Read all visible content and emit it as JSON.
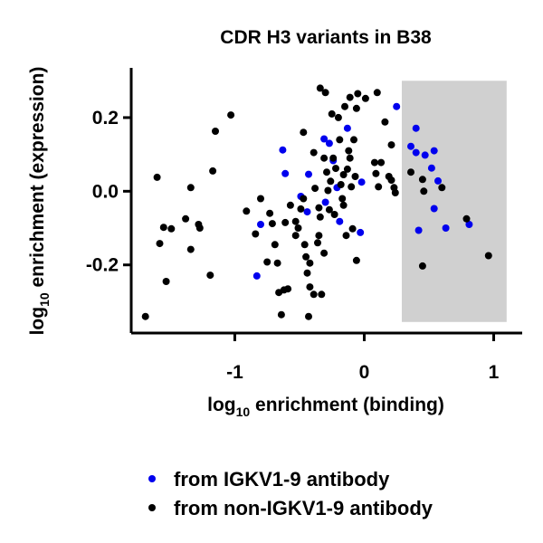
{
  "chart_data": {
    "type": "scatter",
    "title": "CDR H3 variants in B38",
    "xlabel_main": "log",
    "xlabel_sub": "10",
    "xlabel_rest": " enrichment (binding)",
    "ylabel_main": "log",
    "ylabel_sub": "10",
    "ylabel_rest": " enrichment (expression)",
    "xlim": [
      -1.8,
      1.22
    ],
    "ylim": [
      -0.385,
      0.335
    ],
    "xticks": [
      -1,
      0,
      1
    ],
    "xtick_labels": [
      "-1",
      "0",
      "1"
    ],
    "yticks": [
      -0.2,
      0.0,
      0.2
    ],
    "ytick_labels": [
      "-0.2",
      "0.0",
      "0.2"
    ],
    "shaded_region": {
      "x": [
        0.29,
        1.1
      ],
      "y": [
        -0.355,
        0.3
      ],
      "color": "#d0d0d0"
    },
    "grid": false,
    "legend_position": "bottom",
    "series": [
      {
        "name": "from IGKV1-9 antibody",
        "color": "#0000ee",
        "points": [
          [
            -0.63,
            0.112
          ],
          [
            -0.61,
            0.048
          ],
          [
            -0.8,
            -0.09
          ],
          [
            -0.83,
            -0.23
          ],
          [
            -0.49,
            -0.014
          ],
          [
            -0.43,
            0.046
          ],
          [
            -0.44,
            -0.056
          ],
          [
            -0.31,
            0.142
          ],
          [
            -0.27,
            0.13
          ],
          [
            -0.3,
            -0.03
          ],
          [
            -0.24,
            0.083
          ],
          [
            -0.19,
            -0.082
          ],
          [
            -0.13,
            0.171
          ],
          [
            -0.21,
            0.01
          ],
          [
            -0.02,
            0.025
          ],
          [
            -0.03,
            -0.112
          ],
          [
            0.25,
            0.23
          ],
          [
            0.36,
            0.122
          ],
          [
            0.4,
            0.105
          ],
          [
            0.4,
            0.171
          ],
          [
            0.47,
            0.098
          ],
          [
            0.52,
            0.063
          ],
          [
            0.54,
            0.11
          ],
          [
            0.57,
            0.028
          ],
          [
            0.54,
            -0.047
          ],
          [
            0.42,
            -0.106
          ],
          [
            0.63,
            -0.1
          ],
          [
            0.81,
            -0.09
          ]
        ]
      },
      {
        "name": "from non-IGKV1-9 antibody",
        "color": "#000000",
        "points": [
          [
            -1.69,
            -0.34
          ],
          [
            -1.6,
            0.038
          ],
          [
            -1.58,
            -0.142
          ],
          [
            -1.53,
            -0.245
          ],
          [
            -1.55,
            -0.098
          ],
          [
            -1.49,
            -0.102
          ],
          [
            -1.38,
            -0.075
          ],
          [
            -1.34,
            -0.158
          ],
          [
            -1.34,
            0.01
          ],
          [
            -1.28,
            -0.09
          ],
          [
            -1.27,
            -0.1
          ],
          [
            -1.19,
            -0.228
          ],
          [
            -1.17,
            0.055
          ],
          [
            -1.15,
            0.163
          ],
          [
            -1.03,
            0.207
          ],
          [
            -0.91,
            -0.054
          ],
          [
            -0.84,
            -0.116
          ],
          [
            -0.75,
            -0.192
          ],
          [
            -0.8,
            -0.02
          ],
          [
            -0.73,
            -0.06
          ],
          [
            -0.71,
            -0.088
          ],
          [
            -0.67,
            -0.195
          ],
          [
            -0.66,
            -0.275
          ],
          [
            -0.64,
            -0.335
          ],
          [
            -0.62,
            -0.268
          ],
          [
            -0.59,
            -0.265
          ],
          [
            -0.61,
            -0.085
          ],
          [
            -0.57,
            -0.038
          ],
          [
            -0.53,
            -0.12
          ],
          [
            -0.53,
            -0.082
          ],
          [
            -0.49,
            -0.048
          ],
          [
            -0.47,
            -0.02
          ],
          [
            -0.46,
            -0.145
          ],
          [
            -0.44,
            -0.222
          ],
          [
            -0.42,
            -0.26
          ],
          [
            -0.43,
            -0.34
          ],
          [
            -0.42,
            -0.195
          ],
          [
            -0.39,
            -0.28
          ],
          [
            -0.38,
            0.008
          ],
          [
            -0.36,
            -0.14
          ],
          [
            -0.35,
            -0.12
          ],
          [
            -0.34,
            -0.07
          ],
          [
            -0.33,
            -0.28
          ],
          [
            -0.31,
            -0.168
          ],
          [
            -0.31,
            0.09
          ],
          [
            -0.29,
            0.052
          ],
          [
            -0.28,
            0.002
          ],
          [
            -0.27,
            -0.05
          ],
          [
            -0.26,
            0.027
          ],
          [
            -0.25,
            0.21
          ],
          [
            -0.24,
            0.09
          ],
          [
            -0.23,
            -0.063
          ],
          [
            -0.22,
            0.062
          ],
          [
            -0.2,
            0.2
          ],
          [
            -0.19,
            0.14
          ],
          [
            -0.18,
            0.018
          ],
          [
            -0.17,
            -0.02
          ],
          [
            -0.16,
            -0.038
          ],
          [
            -0.15,
            0.23
          ],
          [
            -0.14,
            -0.12
          ],
          [
            -0.13,
            0.06
          ],
          [
            -0.11,
            0.09
          ],
          [
            -0.1,
            0.012
          ],
          [
            -0.09,
            -0.102
          ],
          [
            -0.08,
            0.14
          ],
          [
            -0.06,
            -0.188
          ],
          [
            -0.05,
            0.265
          ],
          [
            -0.34,
            0.28
          ],
          [
            -0.3,
            0.268
          ],
          [
            -0.11,
            0.255
          ],
          [
            -0.06,
            0.225
          ],
          [
            0.01,
            0.252
          ],
          [
            0.08,
            0.078
          ],
          [
            0.09,
            0.048
          ],
          [
            0.11,
            0.012
          ],
          [
            0.13,
            0.078
          ],
          [
            0.16,
            0.188
          ],
          [
            0.1,
            0.268
          ],
          [
            0.19,
            0.04
          ],
          [
            0.21,
            0.03
          ],
          [
            0.23,
            0.01
          ],
          [
            0.24,
            -0.004
          ],
          [
            0.21,
            0.126
          ],
          [
            -0.12,
            0.11
          ],
          [
            -0.07,
            0.04
          ],
          [
            0.36,
            0.052
          ],
          [
            0.45,
            0.032
          ],
          [
            0.46,
            0.0
          ],
          [
            0.6,
            0.01
          ],
          [
            0.79,
            -0.075
          ],
          [
            0.45,
            -0.203
          ],
          [
            0.96,
            -0.175
          ],
          [
            -0.45,
            -0.178
          ],
          [
            -0.51,
            -0.1
          ],
          [
            -0.35,
            -0.045
          ],
          [
            -0.69,
            -0.145
          ],
          [
            -0.16,
            0.045
          ],
          [
            -0.39,
            0.105
          ],
          [
            -0.47,
            0.16
          ]
        ]
      }
    ]
  }
}
